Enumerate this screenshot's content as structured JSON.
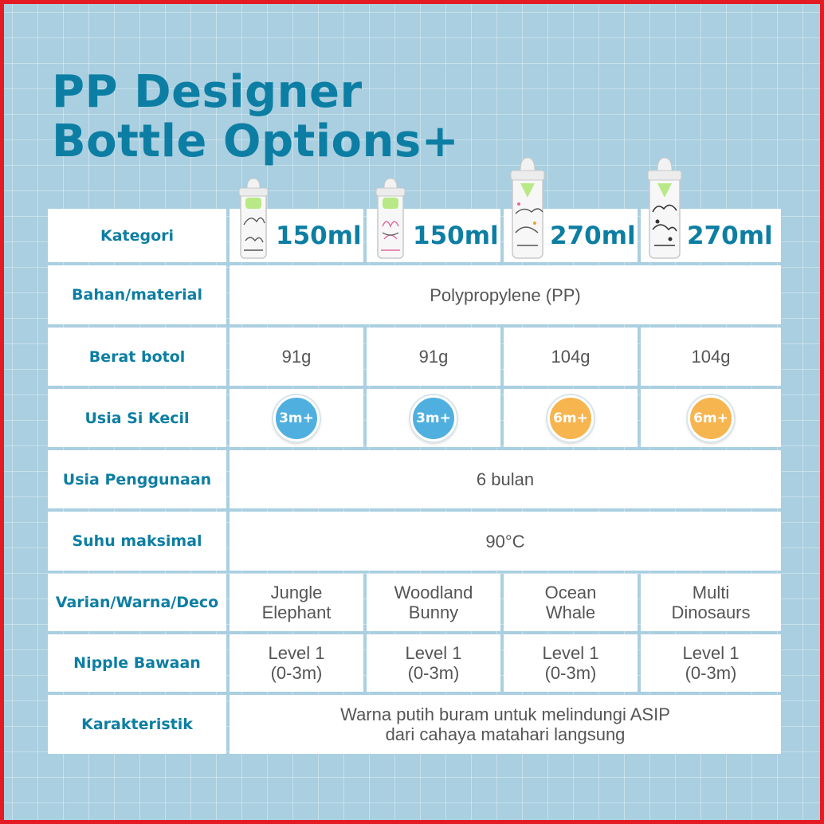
{
  "title": {
    "line1": "PP Designer",
    "line2": "Bottle Options+"
  },
  "colors": {
    "accent": "#0d7ea3",
    "badge_3m": "#4fb0e0",
    "badge_6m": "#f7b54f",
    "background": "#a9cfe0",
    "border": "#e41b23"
  },
  "table": {
    "labels": {
      "kategori": "Kategori",
      "bahan": "Bahan/material",
      "berat": "Berat botol",
      "usia": "Usia Si Kecil",
      "penggunaan": "Usia Penggunaan",
      "suhu": "Suhu maksimal",
      "varian": "Varian/Warna/Deco",
      "nipple": "Nipple Bawaan",
      "karakteristik": "Karakteristik"
    },
    "kategori": [
      "150ml",
      "150ml",
      "270ml",
      "270ml"
    ],
    "bottle_icons": [
      "jungle-elephant-bottle-icon",
      "woodland-bunny-bottle-icon",
      "ocean-whale-bottle-icon",
      "multi-dinosaurs-bottle-icon"
    ],
    "bahan": "Polypropylene (PP)",
    "berat": [
      "91g",
      "91g",
      "104g",
      "104g"
    ],
    "usia": [
      "3m+",
      "3m+",
      "6m+",
      "6m+"
    ],
    "penggunaan": "6 bulan",
    "suhu": "90°C",
    "varian": [
      {
        "line1": "Jungle",
        "line2": "Elephant"
      },
      {
        "line1": "Woodland",
        "line2": "Bunny"
      },
      {
        "line1": "Ocean",
        "line2": "Whale"
      },
      {
        "line1": "Multi",
        "line2": "Dinosaurs"
      }
    ],
    "nipple": [
      {
        "line1": "Level 1",
        "line2": "(0-3m)"
      },
      {
        "line1": "Level 1",
        "line2": "(0-3m)"
      },
      {
        "line1": "Level 1",
        "line2": "(0-3m)"
      },
      {
        "line1": "Level 1",
        "line2": "(0-3m)"
      }
    ],
    "karakteristik": {
      "line1": "Warna putih buram untuk melindungi ASIP",
      "line2": "dari cahaya matahari langsung"
    }
  }
}
